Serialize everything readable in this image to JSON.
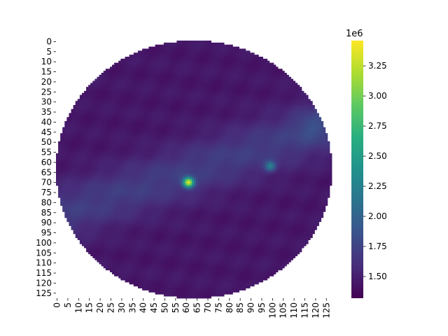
{
  "chart_data": {
    "type": "heatmap",
    "title": "",
    "xlabel": "",
    "ylabel": "",
    "grid": false,
    "mask": "circular",
    "rows": 128,
    "cols": 128,
    "x_tick_labels": [
      "0",
      "5",
      "10",
      "15",
      "20",
      "25",
      "30",
      "35",
      "40",
      "45",
      "50",
      "55",
      "60",
      "65",
      "70",
      "75",
      "80",
      "85",
      "90",
      "95",
      "100",
      "105",
      "110",
      "115",
      "120",
      "125"
    ],
    "y_tick_labels": [
      "0",
      "5",
      "10",
      "15",
      "20",
      "25",
      "30",
      "35",
      "40",
      "45",
      "50",
      "55",
      "60",
      "65",
      "70",
      "75",
      "80",
      "85",
      "90",
      "95",
      "100",
      "105",
      "110",
      "115",
      "120",
      "125"
    ],
    "colorbar": {
      "colormap": "viridis",
      "range": [
        1320000,
        3460000
      ],
      "offset_label": "1e6",
      "ticks": [
        1.5,
        1.75,
        2.0,
        2.25,
        2.5,
        2.75,
        3.0,
        3.25
      ],
      "tick_labels": [
        "1.50",
        "1.75",
        "2.00",
        "2.25",
        "2.50",
        "2.75",
        "3.00",
        "3.25"
      ]
    },
    "description_values": {
      "background_level": 1450000,
      "band_level": 1700000,
      "peaks": [
        {
          "row": 70,
          "col": 61,
          "value": 3450000
        },
        {
          "row": 62,
          "col": 99,
          "value": 2350000
        }
      ]
    }
  }
}
